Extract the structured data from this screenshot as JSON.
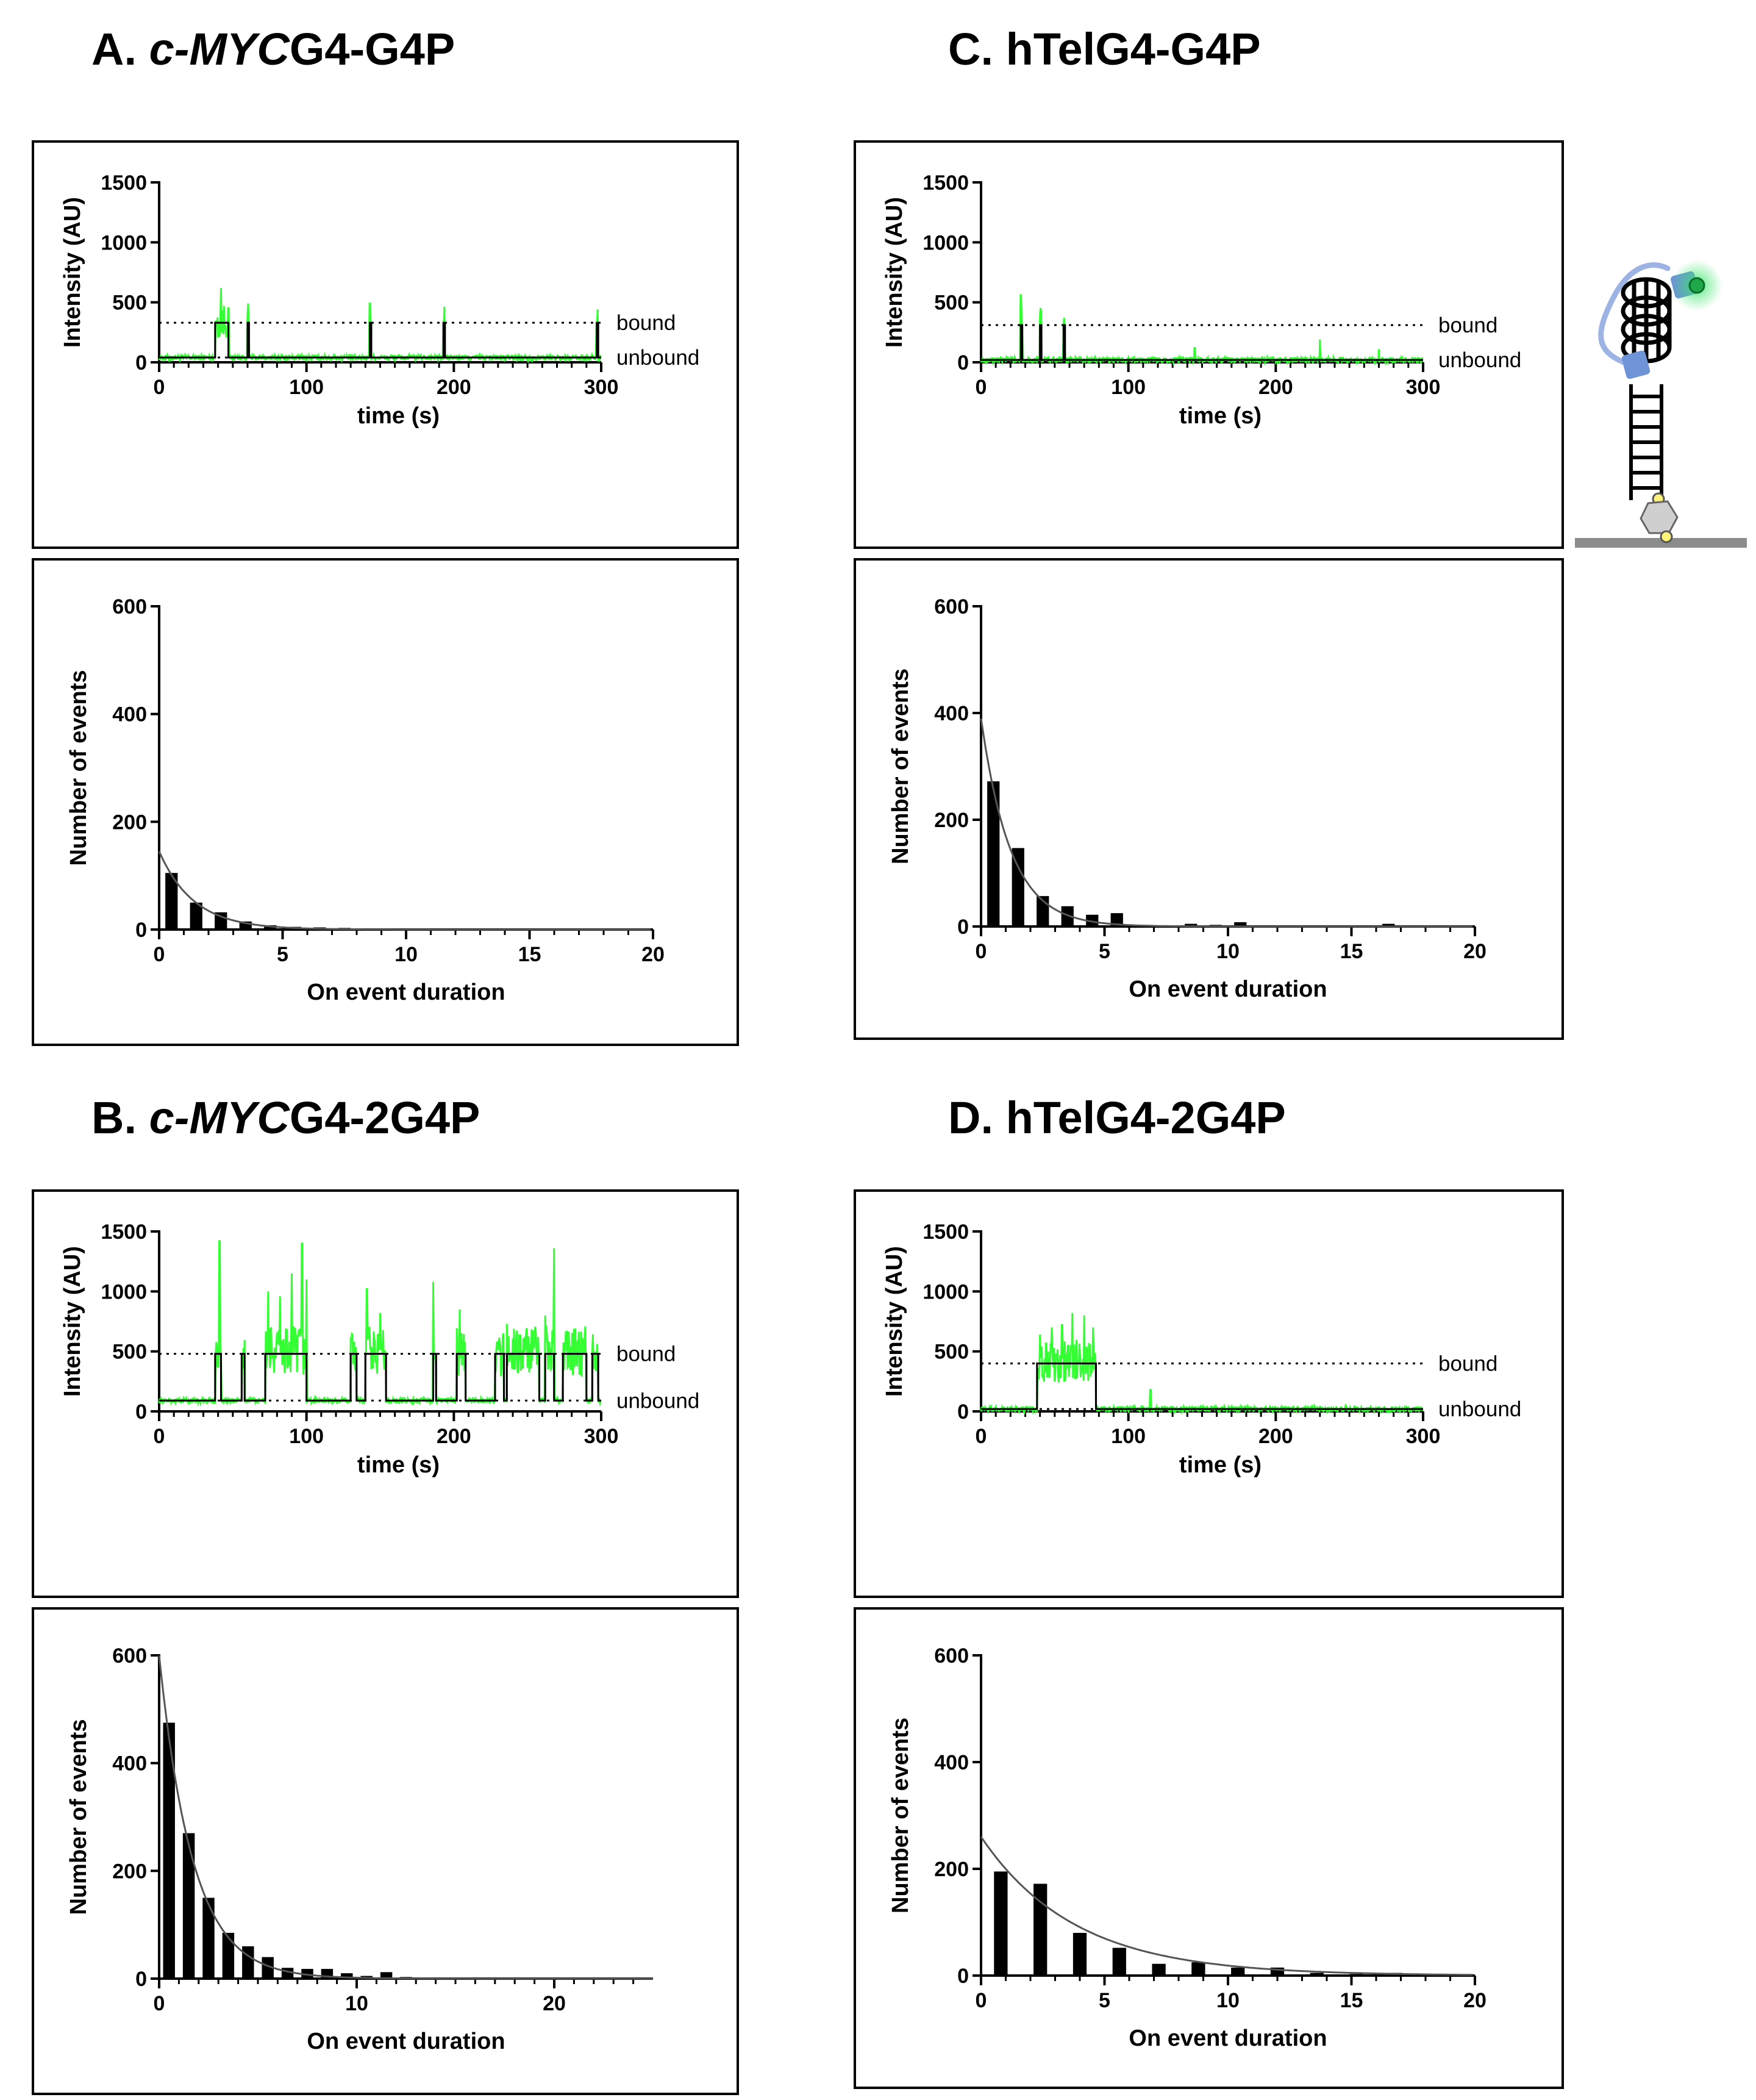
{
  "panels": [
    {
      "id": "A",
      "prefix": "A. ",
      "italic": "c-MYC",
      "suffix": "G4-G4P"
    },
    {
      "id": "B",
      "prefix": "B. ",
      "italic": "c-MYC",
      "suffix": "G4-2G4P"
    },
    {
      "id": "C",
      "prefix": "C. ",
      "italic": "",
      "suffix": "hTelG4-G4P"
    },
    {
      "id": "D",
      "prefix": "D. ",
      "italic": "",
      "suffix": "hTelG4-2G4P"
    }
  ],
  "colors": {
    "trace": "#33ff33",
    "idealized": "#000000",
    "bars": "#000000",
    "fit": "#555555"
  },
  "chart_data": [
    {
      "panel": "A",
      "type": "line",
      "kind": "intensity trace",
      "xlabel": "time (s)",
      "ylabel": "Intensity (AU)",
      "xlim": [
        0,
        300
      ],
      "ylim": [
        0,
        1500
      ],
      "xticks": [
        0,
        100,
        200,
        300
      ],
      "yticks": [
        0,
        500,
        1000,
        1500
      ],
      "bound_level": 330,
      "unbound_level": 40,
      "state_labels": [
        "bound",
        "unbound"
      ],
      "bound_intervals": [
        [
          38,
          47
        ],
        [
          60,
          61
        ],
        [
          143,
          144
        ],
        [
          193,
          194
        ],
        [
          297,
          298
        ]
      ],
      "trace_peaks": [
        [
          42,
          620
        ],
        [
          47,
          450
        ],
        [
          60,
          400
        ],
        [
          143,
          490
        ],
        [
          193,
          330
        ],
        [
          297,
          320
        ]
      ]
    },
    {
      "panel": "A",
      "type": "bar",
      "kind": "dwell histogram",
      "xlabel": "On event duration",
      "ylabel": "Number of events",
      "xlim": [
        0,
        20
      ],
      "ylim": [
        0,
        600
      ],
      "xticks": [
        0,
        5,
        10,
        15,
        20
      ],
      "yticks": [
        0,
        200,
        400,
        600
      ],
      "x": [
        0.5,
        1.5,
        2.5,
        3.5,
        4.5,
        5.5,
        6.5,
        7.5,
        8.5,
        9.5,
        10.5,
        11.5,
        12.5,
        13.5,
        14.5,
        15.5,
        16.5,
        17.5,
        18.5,
        19.5
      ],
      "values": [
        105,
        50,
        32,
        15,
        8,
        5,
        4,
        3,
        2,
        2,
        2,
        1,
        1,
        1,
        1,
        1,
        1,
        1,
        1,
        1
      ],
      "bar_width": 0.5,
      "fit": {
        "a": 145,
        "tau": 1.4
      }
    },
    {
      "panel": "B",
      "type": "line",
      "kind": "intensity trace",
      "xlabel": "time (s)",
      "ylabel": "Intensity (AU)",
      "xlim": [
        0,
        300
      ],
      "ylim": [
        0,
        1500
      ],
      "xticks": [
        0,
        100,
        200,
        300
      ],
      "yticks": [
        0,
        500,
        1000,
        1500
      ],
      "bound_level": 480,
      "unbound_level": 90,
      "state_labels": [
        "bound",
        "unbound"
      ],
      "bound_intervals": [
        [
          38,
          42
        ],
        [
          56,
          58
        ],
        [
          72,
          100
        ],
        [
          130,
          134
        ],
        [
          140,
          154
        ],
        [
          186,
          188
        ],
        [
          202,
          208
        ],
        [
          228,
          234
        ],
        [
          236,
          258
        ],
        [
          262,
          268
        ],
        [
          274,
          290
        ],
        [
          294,
          298
        ]
      ],
      "trace_peaks": [
        [
          41,
          1420
        ],
        [
          74,
          1000
        ],
        [
          82,
          960
        ],
        [
          90,
          1150
        ],
        [
          97,
          1400
        ],
        [
          100,
          1100
        ],
        [
          141,
          1020
        ],
        [
          150,
          820
        ],
        [
          186,
          1080
        ],
        [
          204,
          850
        ],
        [
          236,
          730
        ],
        [
          262,
          800
        ],
        [
          268,
          1360
        ],
        [
          296,
          500
        ]
      ]
    },
    {
      "panel": "B",
      "type": "bar",
      "kind": "dwell histogram",
      "xlabel": "On event duration",
      "ylabel": "Number of events",
      "xlim": [
        0,
        25
      ],
      "ylim": [
        0,
        600
      ],
      "xticks": [
        0,
        10,
        20
      ],
      "yticks": [
        0,
        200,
        400,
        600
      ],
      "x": [
        0.5,
        1.5,
        2.5,
        3.5,
        4.5,
        5.5,
        6.5,
        7.5,
        8.5,
        9.5,
        10.5,
        11.5,
        12.5,
        13.5,
        14.5,
        15.5,
        16.5,
        17.5,
        18.5,
        19.5,
        20.5,
        21.5,
        22.5,
        23.5,
        24.5
      ],
      "values": [
        475,
        270,
        150,
        85,
        60,
        40,
        20,
        18,
        18,
        10,
        5,
        12,
        3,
        2,
        2,
        2,
        1,
        1,
        1,
        1,
        1,
        1,
        1,
        1,
        1
      ],
      "bar_width": 0.6,
      "fit": {
        "a": 600,
        "tau": 1.7
      }
    },
    {
      "panel": "C",
      "type": "line",
      "kind": "intensity trace",
      "xlabel": "time (s)",
      "ylabel": "Intensity (AU)",
      "xlim": [
        0,
        300
      ],
      "ylim": [
        0,
        1500
      ],
      "xticks": [
        0,
        100,
        200,
        300
      ],
      "yticks": [
        0,
        500,
        1000,
        1500
      ],
      "bound_level": 310,
      "unbound_level": 20,
      "state_labels": [
        "bound",
        "unbound"
      ],
      "bound_intervals": [
        [
          27,
          28
        ],
        [
          40,
          41
        ],
        [
          56,
          57
        ]
      ],
      "trace_peaks": [
        [
          27,
          560
        ],
        [
          40,
          400
        ],
        [
          56,
          320
        ],
        [
          145,
          120
        ],
        [
          230,
          190
        ],
        [
          270,
          110
        ]
      ]
    },
    {
      "panel": "C",
      "type": "bar",
      "kind": "dwell histogram",
      "xlabel": "On event duration",
      "ylabel": "Number of events",
      "xlim": [
        0,
        20
      ],
      "ylim": [
        0,
        600
      ],
      "xticks": [
        0,
        5,
        10,
        15,
        20
      ],
      "yticks": [
        0,
        200,
        400,
        600
      ],
      "x": [
        0.5,
        1.5,
        2.5,
        3.5,
        4.5,
        5.5,
        6.5,
        7.5,
        8.5,
        9.5,
        10.5,
        11.5,
        12.5,
        13.5,
        14.5,
        15.5,
        16.5,
        17.5,
        18.5,
        19.5
      ],
      "values": [
        272,
        147,
        57,
        38,
        22,
        25,
        3,
        2,
        5,
        3,
        8,
        2,
        2,
        2,
        2,
        2,
        5,
        2,
        2,
        2
      ],
      "bar_width": 0.5,
      "fit": {
        "a": 390,
        "tau": 1.2
      }
    },
    {
      "panel": "D",
      "type": "line",
      "kind": "intensity trace",
      "xlabel": "time (s)",
      "ylabel": "Intensity (AU)",
      "xlim": [
        0,
        300
      ],
      "ylim": [
        0,
        1500
      ],
      "xticks": [
        0,
        100,
        200,
        300
      ],
      "yticks": [
        0,
        500,
        1000,
        1500
      ],
      "bound_level": 400,
      "unbound_level": 20,
      "state_labels": [
        "bound",
        "unbound"
      ],
      "bound_intervals": [
        [
          38,
          78
        ]
      ],
      "trace_peaks": [
        [
          40,
          640
        ],
        [
          48,
          700
        ],
        [
          55,
          720
        ],
        [
          62,
          820
        ],
        [
          70,
          800
        ],
        [
          76,
          700
        ],
        [
          115,
          180
        ]
      ]
    },
    {
      "panel": "D",
      "type": "bar",
      "kind": "dwell histogram",
      "xlabel": "On event duration",
      "ylabel": "Number of events",
      "xlim": [
        0,
        20
      ],
      "ylim": [
        0,
        600
      ],
      "xticks": [
        0,
        5,
        10,
        15,
        20
      ],
      "yticks": [
        0,
        200,
        400,
        600
      ],
      "x": [
        0.8,
        2.4,
        4.0,
        5.6,
        7.2,
        8.8,
        10.4,
        12.0,
        13.6,
        15.2,
        16.8,
        18.4
      ],
      "values": [
        195,
        172,
        80,
        52,
        22,
        25,
        15,
        15,
        5,
        3,
        5,
        2
      ],
      "bar_width": 0.55,
      "fit": {
        "a": 260,
        "tau": 3.8
      }
    }
  ]
}
